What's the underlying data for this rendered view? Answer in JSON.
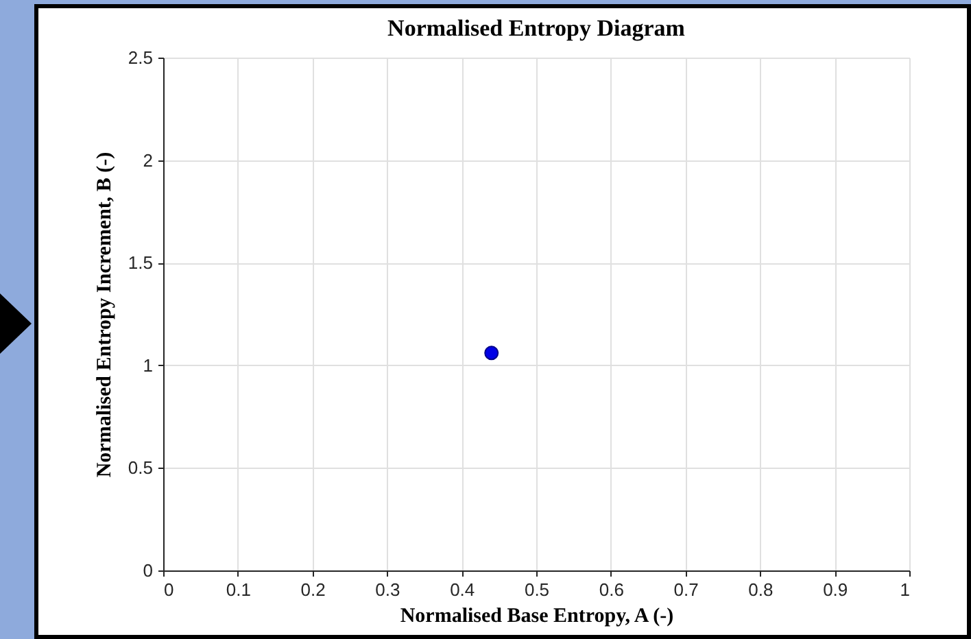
{
  "chart_data": {
    "type": "scatter",
    "title": "Normalised Entropy Diagram",
    "xlabel": "Normalised Base Entropy, A (-)",
    "ylabel": "Normalised Entropy Increment, B (-)",
    "x": [
      0.44
    ],
    "series": [
      {
        "color": "#0000e6",
        "values": [
          1.06
        ]
      }
    ],
    "xlim": [
      0,
      1
    ],
    "ylim": [
      0,
      2.5
    ],
    "xticks": [
      0,
      0.1,
      0.2,
      0.3,
      0.4,
      0.5,
      0.6,
      0.7,
      0.8,
      0.9,
      1
    ],
    "yticks": [
      0,
      0.5,
      1,
      1.5,
      2,
      2.5
    ],
    "grid": true,
    "marker": "circle"
  }
}
